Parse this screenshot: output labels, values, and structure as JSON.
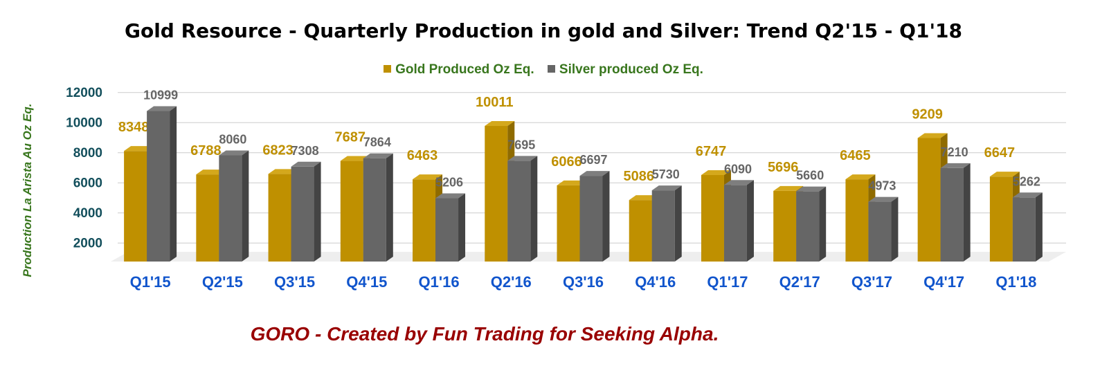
{
  "title": "Gold Resource - Quarterly Production in gold and Silver: Trend Q2'15 - Q1'18",
  "footer": "GORO - Created by Fun Trading for Seeking Alpha.",
  "colors": {
    "gold": "#bf9000",
    "gold_top": "#d4a81c",
    "gold_side": "#8f6b00",
    "silver": "#666666",
    "silver_top": "#7e7e7e",
    "silver_side": "#444444",
    "axis_text": "#134f5c",
    "category_text": "#1155cc",
    "gold_label": "#bf9000",
    "silver_label": "#666666",
    "legend_text": "#38761d",
    "grid": "#cccccc",
    "floor": "#eeeeee"
  },
  "chart_data": {
    "type": "bar",
    "title": "Gold Resource - Quarterly Production in gold and Silver: Trend Q2'15 - Q1'18",
    "xlabel": "",
    "ylabel": "Production La Arista Au Oz Eq.",
    "categories": [
      "Q1'15",
      "Q2'15",
      "Q3'15",
      "Q4'15",
      "Q1'16",
      "Q2'16",
      "Q3'16",
      "Q4'16",
      "Q1'17",
      "Q2'17",
      "Q3'17",
      "Q4'17",
      "Q1'18"
    ],
    "series": [
      {
        "name": "Gold Produced Oz Eq.",
        "values": [
          8348,
          6788,
          6823,
          7687,
          6463,
          10011,
          6066,
          5086,
          6747,
          5696,
          6465,
          9209,
          6647
        ]
      },
      {
        "name": "Silver produced Oz Eq.",
        "values": [
          10999,
          8060,
          7308,
          7864,
          5206,
          7695,
          6697,
          5730,
          6090,
          5660,
          4973,
          7210,
          5262
        ]
      }
    ],
    "y_ticks": [
      "12000",
      "10000",
      "8000",
      "6000",
      "4000",
      "2000"
    ],
    "ylim": [
      1000,
      12000
    ],
    "grid": true,
    "legend": "top-center",
    "data_labels": true
  }
}
